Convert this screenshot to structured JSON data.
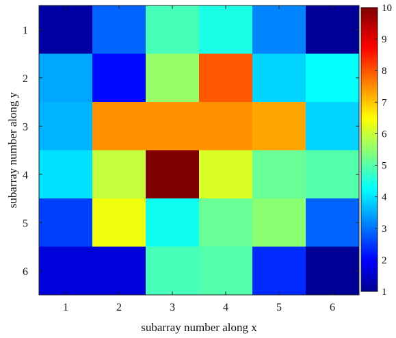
{
  "chart_data": {
    "type": "heatmap",
    "title": "",
    "xlabel": "subarray number along x",
    "ylabel": "subarray number along y",
    "x_categories": [
      "1",
      "2",
      "3",
      "4",
      "5",
      "6"
    ],
    "y_categories": [
      "1",
      "2",
      "3",
      "4",
      "5",
      "6"
    ],
    "values": [
      [
        1.3,
        3.0,
        5.0,
        4.6,
        3.3,
        1.2
      ],
      [
        3.6,
        2.2,
        5.7,
        8.1,
        4.0,
        4.4
      ],
      [
        3.7,
        7.6,
        7.6,
        7.6,
        7.4,
        4.0
      ],
      [
        4.1,
        6.1,
        10.0,
        6.3,
        5.3,
        5.1
      ],
      [
        2.7,
        6.5,
        4.5,
        5.3,
        5.6,
        3.0
      ],
      [
        1.8,
        1.8,
        5.0,
        5.1,
        2.5,
        1.2
      ]
    ],
    "colorbar": {
      "min": 1,
      "max": 10,
      "ticks": [
        "1",
        "2",
        "3",
        "4",
        "5",
        "6",
        "7",
        "8",
        "9",
        "10"
      ],
      "colormap": "jet"
    }
  }
}
